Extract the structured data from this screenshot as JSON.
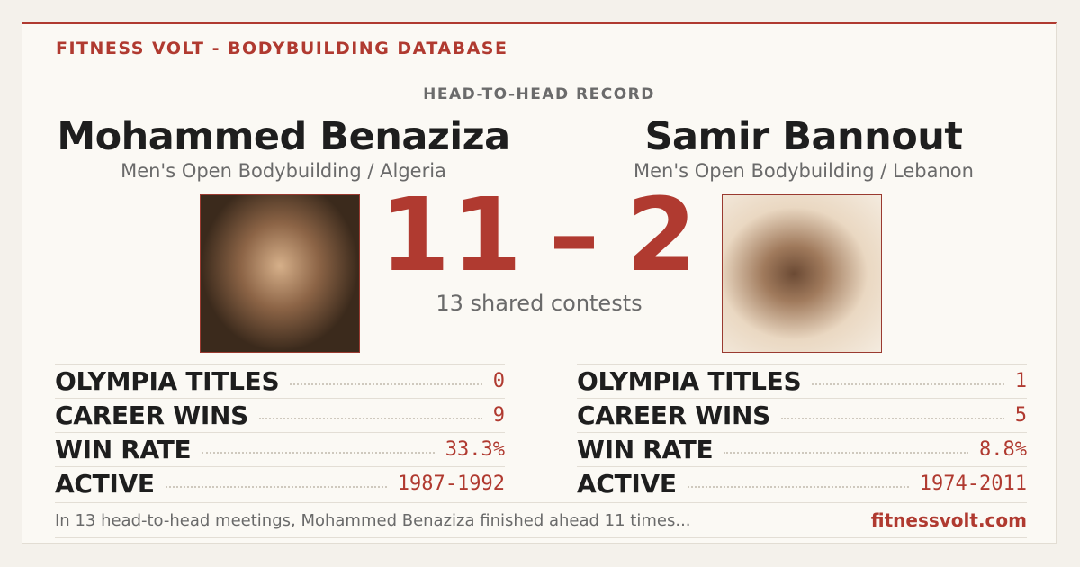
{
  "header": {
    "brand": "FITNESS VOLT - BODYBUILDING DATABASE"
  },
  "section_label": "HEAD-TO-HEAD RECORD",
  "athletes": [
    {
      "name": "Mohammed Benaziza",
      "division": "Men's Open Bodybuilding / Algeria",
      "stats": [
        {
          "label": "OLYMPIA TITLES",
          "value": "0"
        },
        {
          "label": "CAREER WINS",
          "value": "9"
        },
        {
          "label": "WIN RATE",
          "value": "33.3%"
        },
        {
          "label": "ACTIVE",
          "value": "1987-1992"
        }
      ]
    },
    {
      "name": "Samir Bannout",
      "division": "Men's Open Bodybuilding / Lebanon",
      "stats": [
        {
          "label": "OLYMPIA TITLES",
          "value": "1"
        },
        {
          "label": "CAREER WINS",
          "value": "5"
        },
        {
          "label": "WIN RATE",
          "value": "8.8%"
        },
        {
          "label": "ACTIVE",
          "value": "1974-2011"
        }
      ]
    }
  ],
  "score": {
    "left": "11",
    "separator": "–",
    "right": "2",
    "subtitle": "13 shared contests"
  },
  "footer": {
    "summary": "In 13 head-to-head meetings, Mohammed Benaziza finished ahead 11 times...",
    "site": "fitnessvolt.com"
  }
}
